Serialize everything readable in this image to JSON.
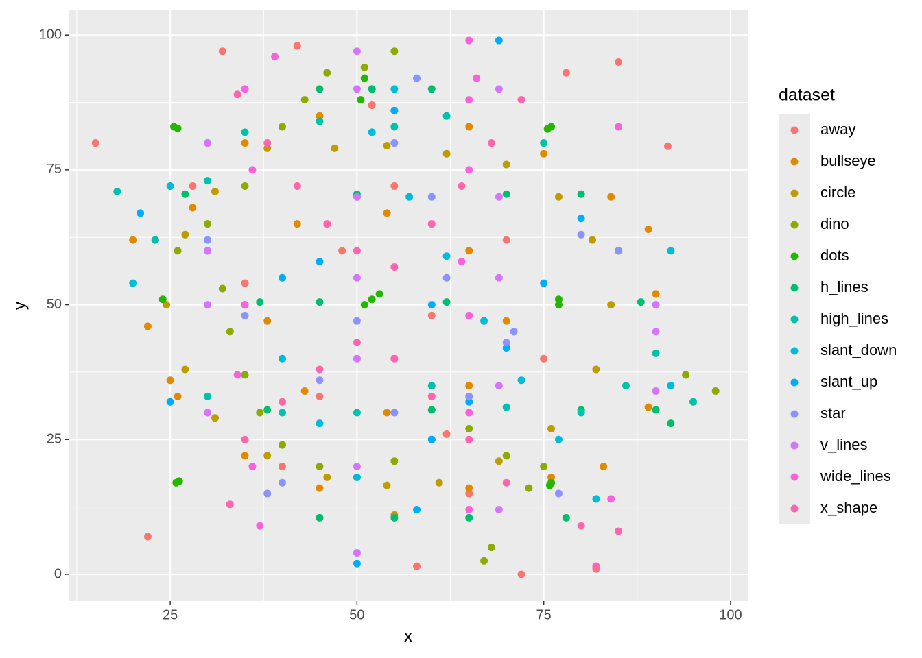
{
  "chart_data": {
    "type": "scatter",
    "xlabel": "x",
    "ylabel": "y",
    "legend_title": "dataset",
    "legend": "right",
    "xlim": [
      11.4,
      102.3
    ],
    "ylim": [
      -4.96,
      104.6
    ],
    "xticks": [
      25,
      50,
      75,
      100
    ],
    "yticks": [
      0,
      25,
      50,
      75,
      100
    ],
    "minor_xticks": [
      12.5,
      37.5,
      62.5,
      87.5
    ],
    "minor_yticks": [
      12.5,
      37.5,
      62.5,
      87.5
    ],
    "grid": true,
    "series": [
      {
        "name": "away",
        "color": "#F8766D",
        "x": [
          32,
          15,
          22,
          42,
          91.6,
          82,
          72,
          58,
          35,
          60,
          45,
          70,
          55,
          40,
          65,
          85,
          78,
          48,
          28,
          75,
          52,
          62
        ],
        "values": [
          97,
          80,
          7,
          98,
          79.4,
          1,
          0,
          1.5,
          54,
          48,
          33,
          62,
          72,
          20,
          15,
          95,
          93,
          60,
          72,
          40,
          87,
          26
        ]
      },
      {
        "name": "bullseye",
        "color": "#E18A00",
        "x": [
          20,
          22,
          25,
          28,
          35,
          45,
          55,
          65,
          75,
          84,
          89,
          90,
          89,
          83,
          76,
          65,
          55,
          45,
          35,
          26,
          42,
          54,
          65,
          70,
          65,
          54,
          43,
          38
        ],
        "values": [
          62,
          46,
          36,
          68,
          80,
          85,
          86,
          83,
          78,
          70,
          64,
          52,
          31,
          20,
          18,
          16,
          11,
          16,
          22,
          33,
          65,
          67,
          60,
          47,
          35,
          30,
          34,
          47
        ]
      },
      {
        "name": "circle",
        "color": "#BE9C00",
        "x": [
          24.5,
          27,
          31,
          38,
          47,
          54,
          62,
          70,
          77,
          81.5,
          84,
          82,
          76,
          69,
          61,
          54,
          46,
          38,
          31,
          27
        ],
        "values": [
          50,
          63,
          71,
          79,
          79,
          79.5,
          78,
          76,
          70,
          62,
          50,
          38,
          27,
          21,
          17,
          16.5,
          18,
          22,
          29,
          38
        ]
      },
      {
        "name": "dino",
        "color": "#8CAB00",
        "x": [
          55,
          51,
          46,
          43,
          40,
          35,
          30,
          23,
          26,
          32,
          33,
          35,
          37,
          40,
          45,
          50,
          55,
          60,
          65,
          70,
          73,
          68,
          67,
          75,
          85,
          94,
          98
        ],
        "values": [
          97,
          94,
          93,
          88,
          83,
          72,
          65,
          62,
          60,
          53,
          45,
          37,
          30,
          24,
          20,
          18,
          21,
          25,
          27,
          22,
          16,
          5,
          2.5,
          20,
          60,
          37,
          34
        ]
      },
      {
        "name": "dots",
        "color": "#24B700",
        "x": [
          25.5,
          26,
          50.5,
          51,
          52,
          76,
          75.5,
          25.8,
          26.2,
          51,
          52,
          53,
          77,
          76,
          75.8,
          77,
          24
        ],
        "values": [
          83,
          82.7,
          88,
          92,
          90,
          83,
          82.6,
          17,
          17.3,
          50,
          51,
          52,
          50,
          17,
          16.5,
          51,
          51
        ]
      },
      {
        "name": "h_lines",
        "color": "#00BE70",
        "x": [
          45,
          55,
          65,
          78,
          38,
          60,
          80,
          90,
          37,
          45,
          62,
          88,
          27,
          50,
          70,
          80,
          52,
          60,
          45,
          92
        ],
        "values": [
          10.5,
          10.5,
          10.5,
          10.5,
          30.5,
          30.5,
          30.5,
          30.5,
          50.5,
          50.5,
          50.5,
          50.5,
          70.5,
          70.5,
          70.5,
          70.5,
          90,
          90,
          90,
          28
        ]
      },
      {
        "name": "high_lines",
        "color": "#00C1AB",
        "x": [
          30,
          35,
          45,
          55,
          62,
          75,
          17.9,
          90,
          95,
          30,
          40,
          50,
          60,
          70,
          80,
          23,
          86
        ],
        "values": [
          73,
          82,
          84,
          83,
          85,
          80,
          71,
          41,
          32,
          33,
          30,
          30,
          35,
          31,
          30,
          62,
          35
        ]
      },
      {
        "name": "slant_down",
        "color": "#00BBDA",
        "x": [
          20,
          25,
          30,
          35,
          40,
          45,
          50,
          52,
          57,
          62,
          67,
          72,
          77,
          82,
          55,
          92,
          92
        ],
        "values": [
          54,
          72,
          60,
          50,
          40,
          28,
          18,
          82,
          70,
          59,
          47,
          36,
          25,
          14,
          90,
          60,
          35
        ]
      },
      {
        "name": "slant_up",
        "color": "#00ACFC",
        "x": [
          21,
          25,
          30,
          35,
          40,
          45,
          50,
          55,
          60,
          65,
          70,
          75,
          80,
          85,
          50,
          58,
          69,
          60
        ],
        "values": [
          67,
          32,
          80,
          50,
          55,
          58,
          70,
          86,
          25,
          32,
          42,
          54,
          66,
          60,
          2,
          12,
          99,
          50
        ]
      },
      {
        "name": "star",
        "color": "#8B93FF",
        "x": [
          30,
          35,
          40,
          45,
          50,
          55,
          58,
          60,
          62,
          65,
          70,
          77,
          80,
          85,
          71,
          38,
          55
        ],
        "values": [
          62,
          48,
          17,
          36,
          47,
          30,
          92,
          70,
          55,
          33,
          43,
          15,
          63,
          60,
          45,
          15,
          80
        ]
      },
      {
        "name": "v_lines",
        "color": "#D575FE",
        "x": [
          30,
          30,
          30,
          30,
          50,
          50,
          50,
          50,
          50,
          50,
          50,
          69,
          69,
          69,
          69,
          69,
          90,
          90,
          90
        ],
        "values": [
          80,
          60,
          50,
          30,
          97,
          90,
          70,
          55,
          40,
          20,
          4,
          90,
          70,
          55,
          35,
          12,
          45,
          34,
          50
        ]
      },
      {
        "name": "wide_lines",
        "color": "#F962DD",
        "x": [
          35,
          36,
          35,
          34,
          36,
          37,
          65,
          65,
          65,
          64,
          65,
          65,
          65,
          66,
          39,
          85,
          84
        ],
        "values": [
          90,
          75,
          50,
          37,
          20,
          9,
          99,
          88,
          75,
          58,
          48,
          30,
          12,
          92,
          96,
          83,
          14
        ]
      },
      {
        "name": "x_shape",
        "color": "#FF65AC",
        "x": [
          34,
          38,
          42,
          46,
          50,
          55,
          60,
          64,
          68,
          72,
          50,
          45,
          40,
          35,
          33,
          55,
          60,
          65,
          70,
          80,
          82,
          85
        ],
        "values": [
          89,
          80,
          72,
          65,
          60,
          57,
          65,
          72,
          80,
          88,
          43,
          38,
          32,
          25,
          13,
          40,
          33,
          25,
          17,
          9,
          1.5,
          8
        ]
      }
    ]
  }
}
